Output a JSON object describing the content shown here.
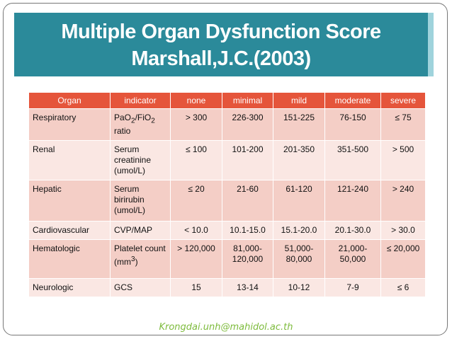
{
  "header": {
    "title_lines": [
      "Multiple Organ Dysfunction Score",
      "Marshall,J.C.(2003)"
    ]
  },
  "table": {
    "header": [
      "Organ",
      "indicator",
      "none",
      "minimal",
      "mild",
      "moderate",
      "severe"
    ],
    "rows": [
      [
        "Respiratory",
        {
          "parts": [
            {
              "text": "PaO"
            },
            {
              "text": "2",
              "sub": true
            },
            {
              "text": "/FiO"
            },
            {
              "text": "2",
              "sub": true
            },
            {
              "text": " ratio"
            }
          ]
        },
        "> 300",
        "226-300",
        "151-225",
        "76-150",
        "≤ 75"
      ],
      [
        "Renal",
        "Serum creatinine (umol/L)",
        "≤ 100",
        "101-200",
        "201-350",
        "351-500",
        "> 500"
      ],
      [
        "Hepatic",
        "Serum birirubin (umol/L)",
        "≤ 20",
        "21-60",
        "61-120",
        "121-240",
        "> 240"
      ],
      [
        "Cardiovascular",
        "CVP/MAP",
        "< 10.0",
        "10.1-15.0",
        "15.1-20.0",
        "20.1-30.0",
        "> 30.0"
      ],
      [
        "Hematologic",
        {
          "parts": [
            {
              "text": "Platelet count (mm"
            },
            {
              "text": "3",
              "sup": true
            },
            {
              "text": ")"
            }
          ]
        },
        "> 120,000",
        "81,000-120,000",
        "51,000-80,000",
        "21,000-50,000",
        "≤ 20,000"
      ],
      [
        "Neurologic",
        "GCS",
        "15",
        "13-14",
        "10-12",
        "7-9",
        "≤ 6"
      ]
    ]
  },
  "footer": {
    "email": "Krongdai.unh@mahidol.ac.th"
  }
}
